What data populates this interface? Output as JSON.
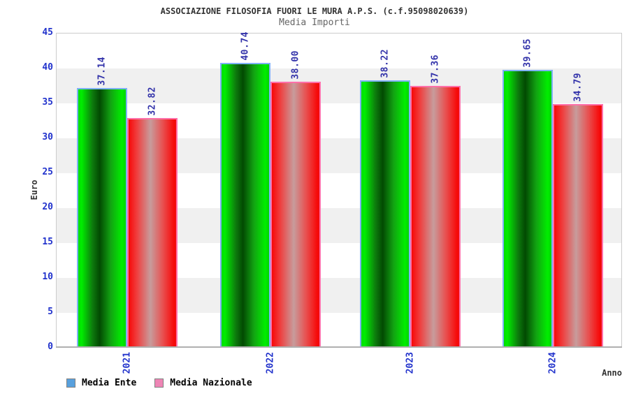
{
  "header": {
    "title": "ASSOCIAZIONE FILOSOFIA FUORI LE MURA A.P.S. (c.f.95098020639)",
    "subtitle": "Media Importi"
  },
  "chart_data": {
    "type": "bar",
    "title": "Media Importi",
    "categories": [
      "2021",
      "2022",
      "2023",
      "2024"
    ],
    "series": [
      {
        "name": "Media Ente",
        "values": [
          37.14,
          40.74,
          38.22,
          39.65
        ],
        "bar_style": "green-cylinder-gradient",
        "bar_border_color": "#7fb2f7",
        "legend_color": "#58a0dd"
      },
      {
        "name": "Media Nazionale",
        "values": [
          32.82,
          38.0,
          37.36,
          34.79
        ],
        "bar_style": "red-cylinder-gradient",
        "bar_border_color": "#ff70aa",
        "legend_color": "#ee85b5"
      }
    ],
    "xlabel": "Anno",
    "ylabel": "Euro",
    "ylim": [
      0,
      45
    ],
    "y_ticks": [
      0,
      5,
      10,
      15,
      20,
      25,
      30,
      35,
      40,
      45
    ],
    "value_label_decimals": 2,
    "grid_bands": "alternating horizontal white/gray bands every 5 units",
    "legend_position": "bottom-left",
    "colors": {
      "tick_label": "#2233cc",
      "value_label": "#3333aa",
      "axis_title": "#333333",
      "plot_border": "#cccccc",
      "band_gray": "#f0f0f0"
    }
  }
}
